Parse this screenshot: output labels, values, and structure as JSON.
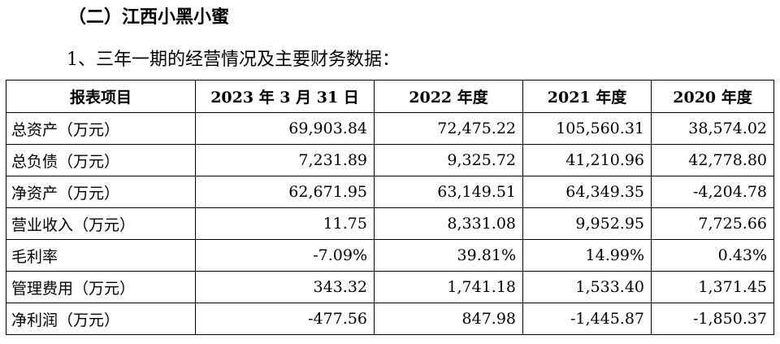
{
  "section_title": "（二）江西小黑小蜜",
  "subsection_title": "1、三年一期的经营情况及主要财务数据：",
  "table": {
    "headers": [
      "报表项目",
      "2023 年 3 月 31 日",
      "2022 年度",
      "2021 年度",
      "2020 年度"
    ],
    "rows": [
      {
        "label": "总资产（万元）",
        "values": [
          "69,903.84",
          "72,475.22",
          "105,560.31",
          "38,574.02"
        ]
      },
      {
        "label": "总负债（万元）",
        "values": [
          "7,231.89",
          "9,325.72",
          "41,210.96",
          "42,778.80"
        ]
      },
      {
        "label": "净资产（万元）",
        "values": [
          "62,671.95",
          "63,149.51",
          "64,349.35",
          "-4,204.78"
        ]
      },
      {
        "label": "营业收入（万元）",
        "values": [
          "11.75",
          "8,331.08",
          "9,952.95",
          "7,725.66"
        ]
      },
      {
        "label": "毛利率",
        "values": [
          "-7.09%",
          "39.81%",
          "14.99%",
          "0.43%"
        ]
      },
      {
        "label": "管理费用（万元）",
        "values": [
          "343.32",
          "1,741.18",
          "1,533.40",
          "1,371.45"
        ]
      },
      {
        "label": "净利润（万元）",
        "values": [
          "-477.56",
          "847.98",
          "-1,445.87",
          "-1,850.37"
        ]
      }
    ]
  }
}
